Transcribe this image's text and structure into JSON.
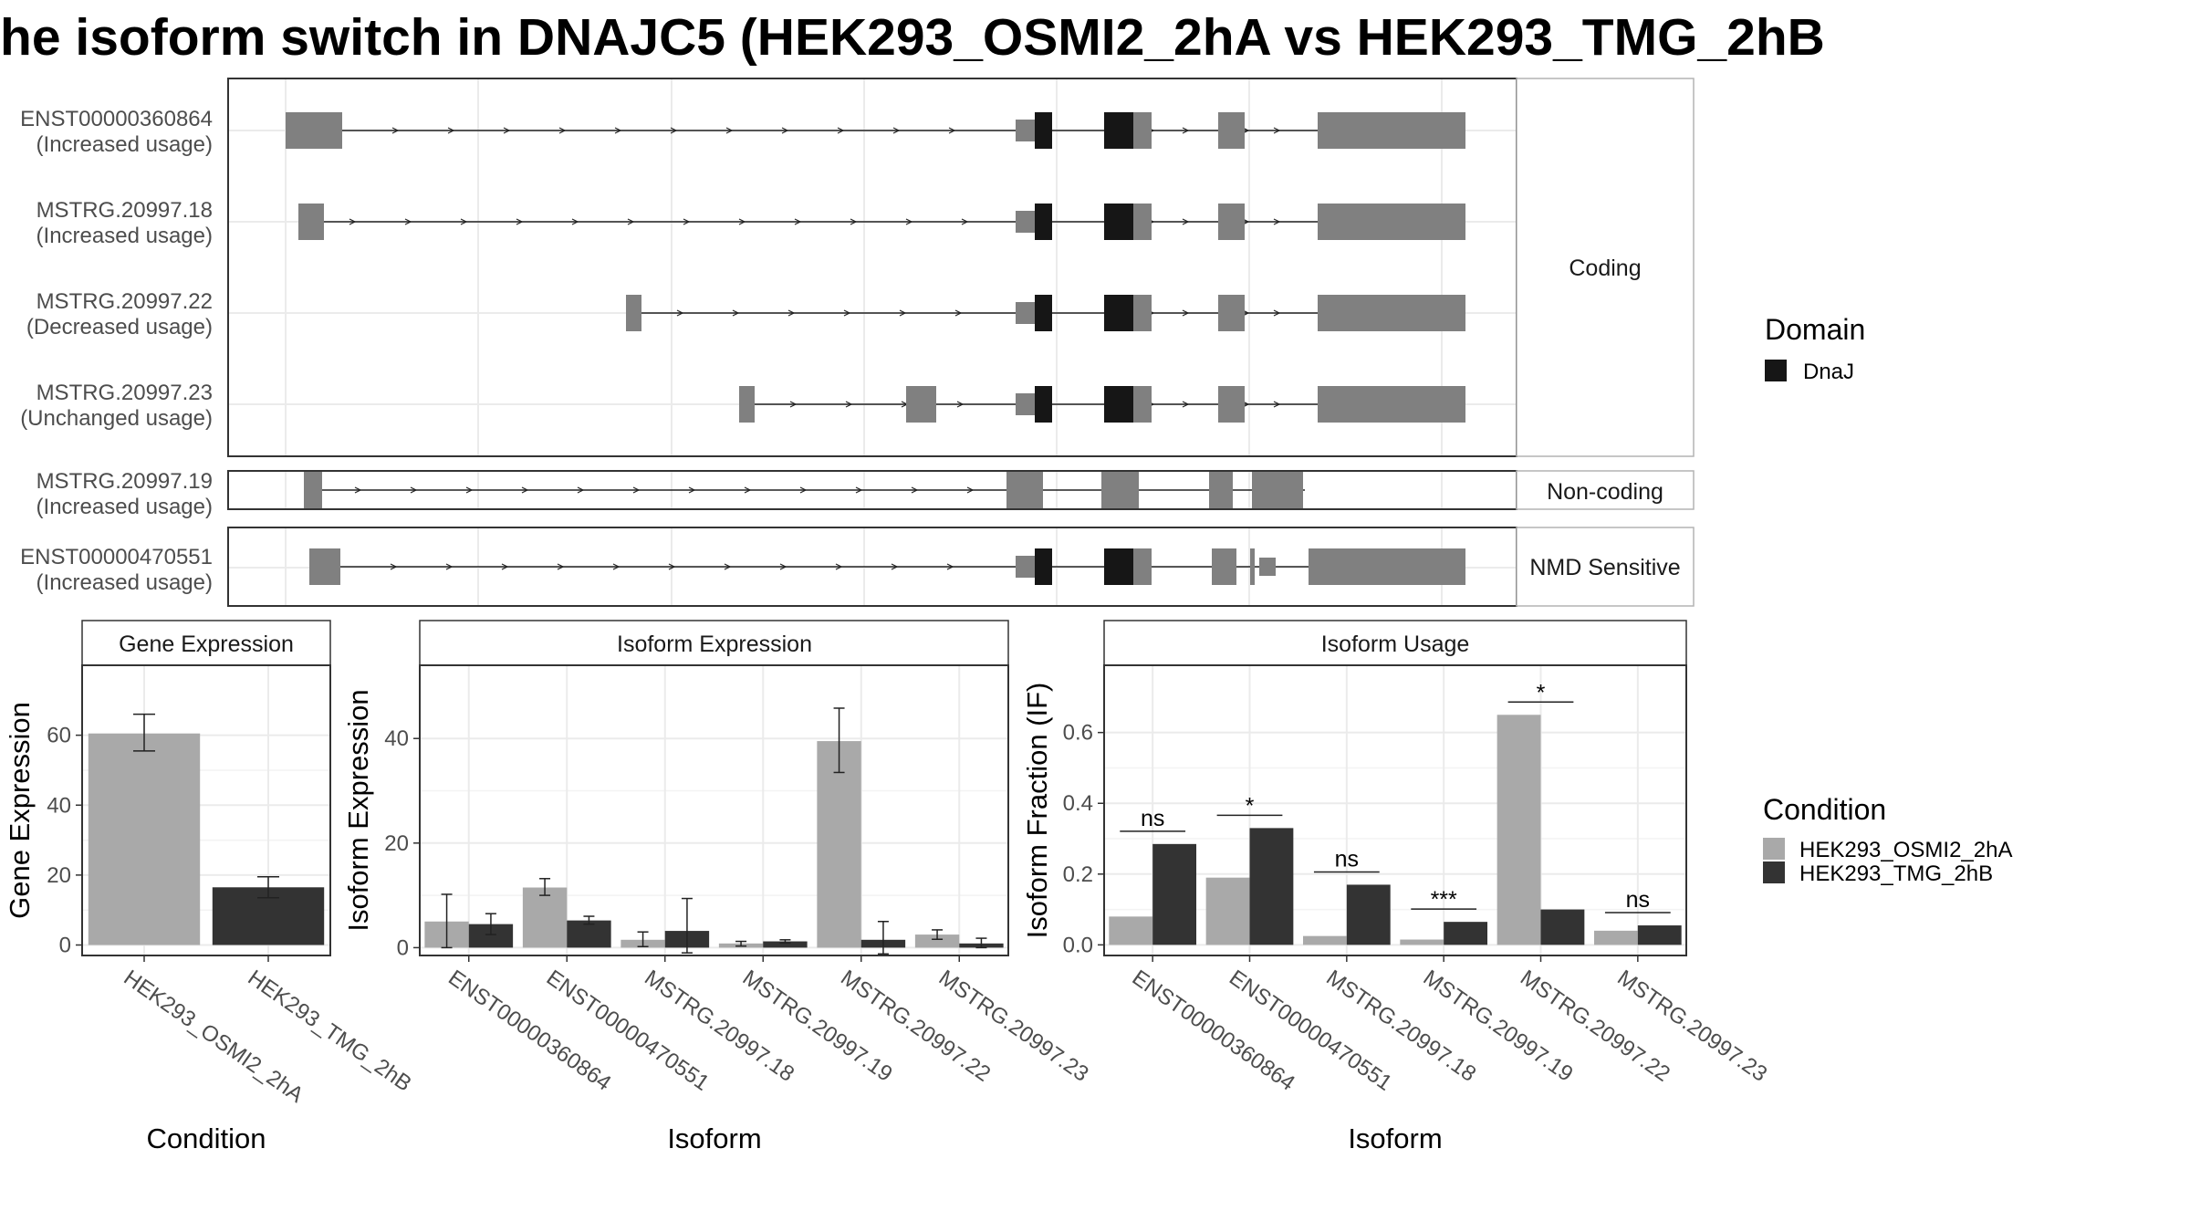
{
  "title": "he isoform switch in DNAJC5 (HEK293_OSMI2_2hA vs HEK293_TMG_2hB",
  "colors": {
    "exon": "#808080",
    "domain": "#161616",
    "cond1": "#a9a9a9",
    "cond2": "#333333",
    "grid": "#ebebeb",
    "panel_border": "#333333"
  },
  "structure": {
    "groups": [
      {
        "name": "Coding",
        "isoforms": [
          "ENST00000360864",
          "MSTRG.20997.18",
          "MSTRG.20997.22",
          "MSTRG.20997.23"
        ]
      },
      {
        "name": "Non-coding",
        "isoforms": [
          "MSTRG.20997.19"
        ]
      },
      {
        "name": "NMD Sensitive",
        "isoforms": [
          "ENST00000470551"
        ]
      }
    ],
    "isoforms": [
      {
        "id": "ENST00000360864",
        "status": "(Increased usage)"
      },
      {
        "id": "MSTRG.20997.18",
        "status": "(Increased usage)"
      },
      {
        "id": "MSTRG.20997.22",
        "status": "(Decreased usage)"
      },
      {
        "id": "MSTRG.20997.23",
        "status": "(Unchanged usage)"
      },
      {
        "id": "MSTRG.20997.19",
        "status": "(Increased usage)"
      },
      {
        "id": "ENST00000470551",
        "status": "(Increased usage)"
      }
    ],
    "legend_title": "Domain",
    "legend_item": "DnaJ"
  },
  "condition_legend": {
    "title": "Condition",
    "items": [
      "HEK293_OSMI2_2hA",
      "HEK293_TMG_2hB"
    ]
  },
  "chart_data": [
    {
      "type": "bar",
      "title": "Gene Expression",
      "xlabel": "Condition",
      "ylabel": "Gene Expression",
      "categories": [
        "HEK293_OSMI2_2hA",
        "HEK293_TMG_2hB"
      ],
      "values": [
        60.5,
        16.5
      ],
      "errors": [
        [
          55.5,
          66.0
        ],
        [
          13.5,
          19.5
        ]
      ],
      "ylim": [
        -3,
        80
      ],
      "yticks": [
        0,
        20,
        40,
        60
      ]
    },
    {
      "type": "bar",
      "title": "Isoform Expression",
      "xlabel": "Isoform",
      "ylabel": "Isoform Expression",
      "categories": [
        "ENST00000360864",
        "ENST00000470551",
        "MSTRG.20997.18",
        "MSTRG.20997.19",
        "MSTRG.20997.22",
        "MSTRG.20997.23"
      ],
      "series": [
        {
          "name": "HEK293_OSMI2_2hA",
          "values": [
            5.0,
            11.5,
            1.5,
            0.8,
            39.5,
            2.5
          ],
          "errors": [
            [
              0.0,
              10.2
            ],
            [
              10.0,
              13.2
            ],
            [
              0.2,
              3.0
            ],
            [
              0.3,
              1.2
            ],
            [
              33.5,
              45.8
            ],
            [
              1.6,
              3.4
            ]
          ]
        },
        {
          "name": "HEK293_TMG_2hB",
          "values": [
            4.5,
            5.2,
            3.2,
            1.2,
            1.5,
            0.8
          ],
          "errors": [
            [
              2.5,
              6.5
            ],
            [
              4.5,
              6.0
            ],
            [
              -1.0,
              9.4
            ],
            [
              0.9,
              1.5
            ],
            [
              -1.2,
              5.0
            ],
            [
              0.0,
              1.8
            ]
          ]
        }
      ],
      "ylim": [
        -1.5,
        54
      ],
      "yticks": [
        0,
        20,
        40
      ]
    },
    {
      "type": "bar",
      "title": "Isoform Usage",
      "xlabel": "Isoform",
      "ylabel": "Isoform Fraction (IF)",
      "categories": [
        "ENST00000360864",
        "ENST00000470551",
        "MSTRG.20997.18",
        "MSTRG.20997.19",
        "MSTRG.20997.22",
        "MSTRG.20997.23"
      ],
      "series": [
        {
          "name": "HEK293_OSMI2_2hA",
          "values": [
            0.08,
            0.19,
            0.025,
            0.015,
            0.65,
            0.04
          ]
        },
        {
          "name": "HEK293_TMG_2hB",
          "values": [
            0.285,
            0.33,
            0.17,
            0.065,
            0.1,
            0.055
          ]
        }
      ],
      "significance": [
        "ns",
        "*",
        "ns",
        "***",
        "*",
        "ns"
      ],
      "ylim": [
        -0.03,
        0.79
      ],
      "yticks": [
        0.0,
        0.2,
        0.4,
        0.6
      ],
      "ytick_labels": [
        "0.0",
        "0.2",
        "0.4",
        "0.6"
      ]
    }
  ]
}
